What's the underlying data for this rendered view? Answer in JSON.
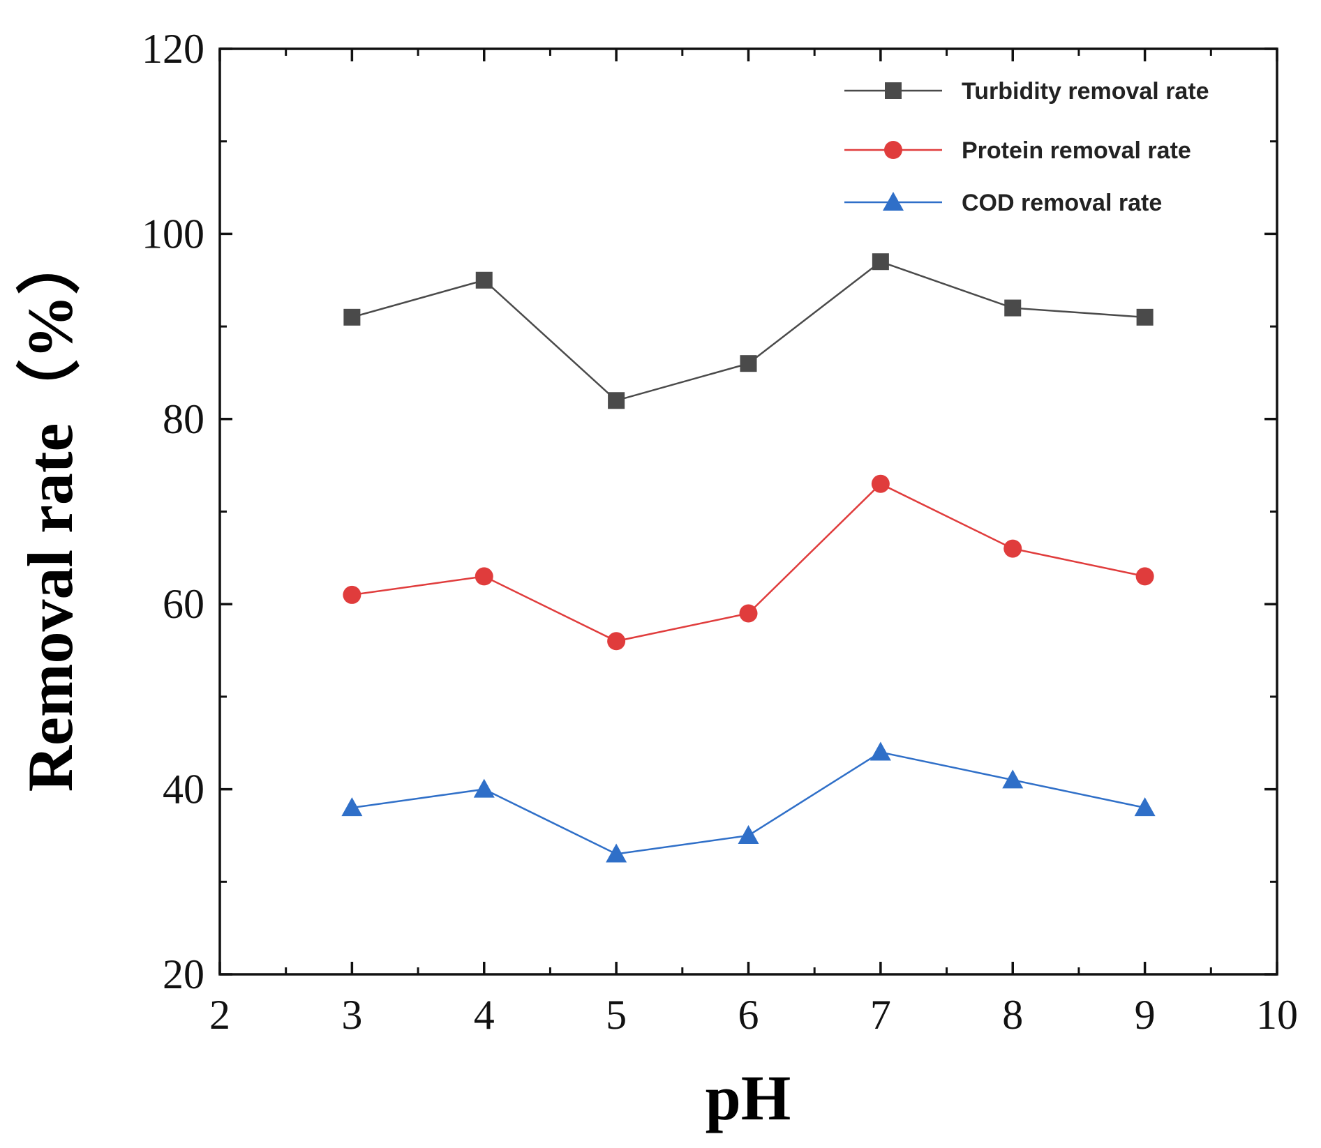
{
  "chart_data": {
    "type": "line",
    "title": "",
    "xlabel": "pH",
    "ylabel": "Removal rate（%）",
    "xlim": [
      2,
      10
    ],
    "ylim": [
      20,
      120
    ],
    "x_ticks": [
      "2",
      "3",
      "4",
      "5",
      "6",
      "7",
      "8",
      "9",
      "10"
    ],
    "y_ticks": [
      "20",
      "40",
      "60",
      "80",
      "100",
      "120"
    ],
    "x": [
      3,
      4,
      5,
      6,
      7,
      8,
      9
    ],
    "grid": false,
    "legend_position": "top-right",
    "series": [
      {
        "name": "Turbidity removal rate",
        "marker": "square",
        "color": "#4a4a4a",
        "values": [
          91,
          95,
          82,
          86,
          97,
          92,
          91
        ]
      },
      {
        "name": "Protein removal rate",
        "marker": "circle",
        "color": "#e03c3c",
        "values": [
          61,
          63,
          56,
          59,
          73,
          66,
          63
        ]
      },
      {
        "name": "COD removal rate",
        "marker": "triangle",
        "color": "#2f6fc8",
        "values": [
          38,
          40,
          33,
          35,
          44,
          41,
          38
        ]
      }
    ]
  }
}
